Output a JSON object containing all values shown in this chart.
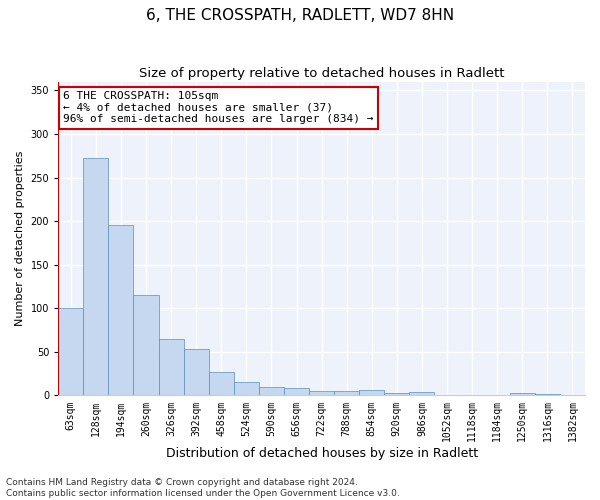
{
  "title": "6, THE CROSSPATH, RADLETT, WD7 8HN",
  "subtitle": "Size of property relative to detached houses in Radlett",
  "xlabel": "Distribution of detached houses by size in Radlett",
  "ylabel": "Number of detached properties",
  "categories": [
    "63sqm",
    "128sqm",
    "194sqm",
    "260sqm",
    "326sqm",
    "392sqm",
    "458sqm",
    "524sqm",
    "590sqm",
    "656sqm",
    "722sqm",
    "788sqm",
    "854sqm",
    "920sqm",
    "986sqm",
    "1052sqm",
    "1118sqm",
    "1184sqm",
    "1250sqm",
    "1316sqm",
    "1382sqm"
  ],
  "values": [
    100,
    272,
    195,
    115,
    65,
    53,
    27,
    16,
    10,
    9,
    5,
    5,
    6,
    3,
    4,
    1,
    1,
    0,
    3,
    2,
    1
  ],
  "bar_color": "#c5d8f0",
  "bar_edge_color": "#5a8fc0",
  "highlight_color": "#cc0000",
  "highlight_bar_index": 0,
  "annotation_box_color": "#cc0000",
  "annotation_text": "6 THE CROSSPATH: 105sqm\n← 4% of detached houses are smaller (37)\n96% of semi-detached houses are larger (834) →",
  "ylim": [
    0,
    360
  ],
  "yticks": [
    0,
    50,
    100,
    150,
    200,
    250,
    300,
    350
  ],
  "background_color": "#eef2fa",
  "grid_color": "#ffffff",
  "footer": "Contains HM Land Registry data © Crown copyright and database right 2024.\nContains public sector information licensed under the Open Government Licence v3.0.",
  "title_fontsize": 11,
  "subtitle_fontsize": 9.5,
  "xlabel_fontsize": 9,
  "ylabel_fontsize": 8,
  "tick_fontsize": 7,
  "annotation_fontsize": 8,
  "footer_fontsize": 6.5
}
